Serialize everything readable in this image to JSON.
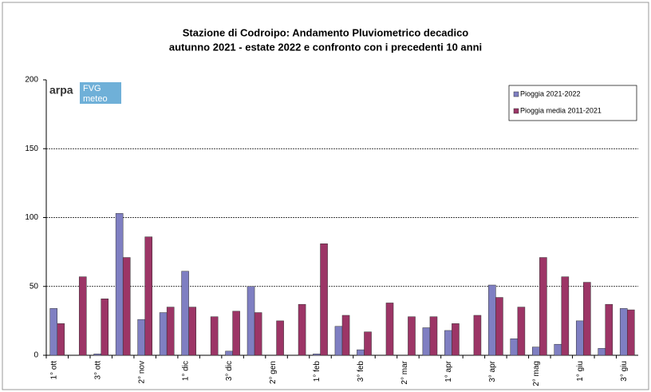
{
  "chart_data": {
    "type": "bar",
    "title": "Stazione di Codroipo: Andamento Pluviometrico decadico",
    "subtitle": "autunno 2021 - estate 2022 e confronto con i precedenti 10 anni",
    "logo": {
      "left": "arpa",
      "top": "FVG",
      "bottom": "meteo"
    },
    "categories": [
      "1° ott",
      null,
      "3° ott",
      null,
      "2° nov",
      null,
      "1° dic",
      null,
      "3° dic",
      null,
      "2° gen",
      null,
      "1° feb",
      null,
      "3° feb",
      null,
      "2° mar",
      null,
      "1° apr",
      null,
      "3° apr",
      null,
      "2° mag",
      null,
      "1° giu",
      null,
      "3° giu"
    ],
    "series": [
      {
        "name": "Pioggia 2021-2022",
        "color": "#7f7fc2",
        "values": [
          34,
          0,
          1,
          103,
          26,
          31,
          61,
          0,
          3,
          50,
          0,
          0,
          1,
          21,
          4,
          0,
          0,
          20,
          18,
          0,
          51,
          12,
          6,
          8,
          25,
          5,
          34
        ]
      },
      {
        "name": "Pioggia media 2011-2021",
        "color": "#9c3566",
        "values": [
          23,
          57,
          41,
          71,
          86,
          35,
          35,
          28,
          32,
          31,
          25,
          37,
          81,
          29,
          17,
          38,
          28,
          28,
          23,
          29,
          42,
          35,
          71,
          57,
          53,
          37,
          33
        ]
      }
    ],
    "ylim": [
      0,
      200
    ],
    "yticks": [
      0,
      50,
      100,
      150,
      200
    ],
    "grid": true,
    "legend": "top-right"
  }
}
